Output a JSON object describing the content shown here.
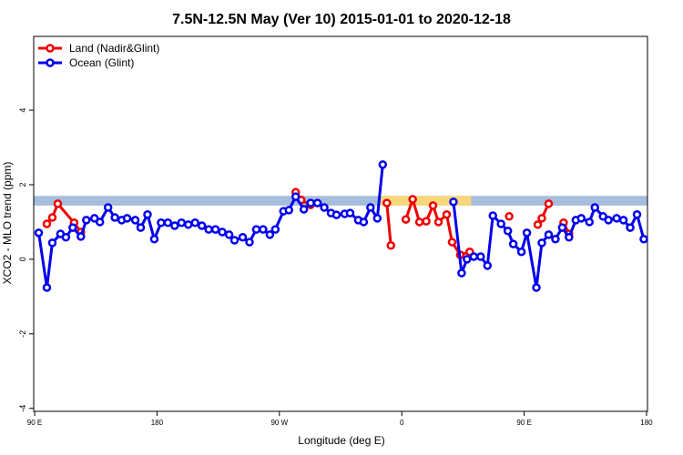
{
  "chart_data": {
    "type": "line",
    "title": "7.5N-12.5N May (Ver 10)   2015-01-01 to 2020-12-18",
    "x_label": "Longitude (deg E)",
    "y_label": "XCO2 - MLO trend (ppm)",
    "xlim": [
      89.3,
      540.7
    ],
    "xticks": [
      {
        "value": 90,
        "label": "90 E"
      },
      180,
      {
        "value": 270,
        "label": "90 W"
      },
      {
        "value": 360,
        "label": "0"
      },
      {
        "value": 450,
        "label": "90 E"
      },
      {
        "value": 540,
        "label": "180"
      }
    ],
    "ylim": [
      -4.08,
      5.98
    ],
    "yticks": [
      -4,
      -2,
      0,
      2,
      4
    ],
    "legend": "top-left",
    "band": {
      "range": [
        1.44,
        1.7
      ],
      "color": "#a6bddb",
      "highlight_xlim": [
        343,
        411
      ],
      "highlight_color": "#f7d77a"
    },
    "series": [
      {
        "name": "Land (Nadir&Glint)",
        "color": "#ee0000",
        "x": [
          99,
          103,
          107,
          119,
          124,
          null,
          282,
          286,
          293,
          null,
          349,
          352,
          null,
          363,
          368,
          373,
          378,
          383,
          387,
          393,
          397,
          403,
          410,
          null,
          439,
          null,
          460,
          463,
          468,
          null,
          479,
          483
        ],
        "values": [
          0.95,
          1.12,
          1.49,
          0.98,
          0.73,
          null,
          1.8,
          1.59,
          1.46,
          null,
          1.51,
          0.37,
          null,
          1.07,
          1.61,
          1.0,
          1.02,
          1.44,
          1.0,
          1.2,
          0.46,
          0.12,
          0.2,
          null,
          1.15,
          null,
          0.93,
          1.1,
          1.49,
          null,
          0.98,
          0.68
        ]
      },
      {
        "name": "Ocean (Glint)",
        "color": "#0000ee",
        "x": [
          93,
          99,
          103,
          109,
          113,
          118,
          124,
          128,
          134,
          138,
          144,
          149,
          154,
          158,
          164,
          168,
          173,
          178,
          183,
          188,
          193,
          198,
          203,
          208,
          213,
          218,
          223,
          228,
          233,
          237,
          243,
          248,
          253,
          258,
          263,
          267,
          273,
          277,
          282,
          288,
          293,
          298,
          303,
          308,
          312,
          318,
          322,
          328,
          332,
          337,
          342,
          346,
          null,
          398,
          404,
          408,
          413,
          418,
          423,
          427,
          433,
          438,
          442,
          448,
          452,
          459,
          463,
          468,
          473,
          478,
          483,
          488,
          492,
          498,
          502,
          508,
          512,
          518,
          523,
          528,
          533,
          538
        ],
        "values": [
          0.71,
          -0.76,
          0.44,
          0.68,
          0.59,
          0.85,
          0.61,
          1.05,
          1.1,
          1.0,
          1.39,
          1.12,
          1.05,
          1.1,
          1.05,
          0.85,
          1.2,
          0.54,
          0.98,
          0.98,
          0.9,
          0.98,
          0.93,
          0.98,
          0.9,
          0.8,
          0.8,
          0.73,
          0.66,
          0.51,
          0.59,
          0.46,
          0.8,
          0.8,
          0.66,
          0.8,
          1.29,
          1.32,
          1.68,
          1.34,
          1.51,
          1.51,
          1.39,
          1.24,
          1.19,
          1.22,
          1.24,
          1.05,
          1.0,
          1.39,
          1.1,
          2.54,
          null,
          1.54,
          -0.37,
          0.0,
          0.07,
          0.07,
          -0.17,
          1.17,
          0.95,
          0.76,
          0.41,
          0.2,
          0.71,
          -0.76,
          0.44,
          0.66,
          0.54,
          0.85,
          0.59,
          1.05,
          1.1,
          1.0,
          1.39,
          1.15,
          1.05,
          1.1,
          1.05,
          0.85,
          1.2,
          0.54
        ]
      }
    ]
  }
}
